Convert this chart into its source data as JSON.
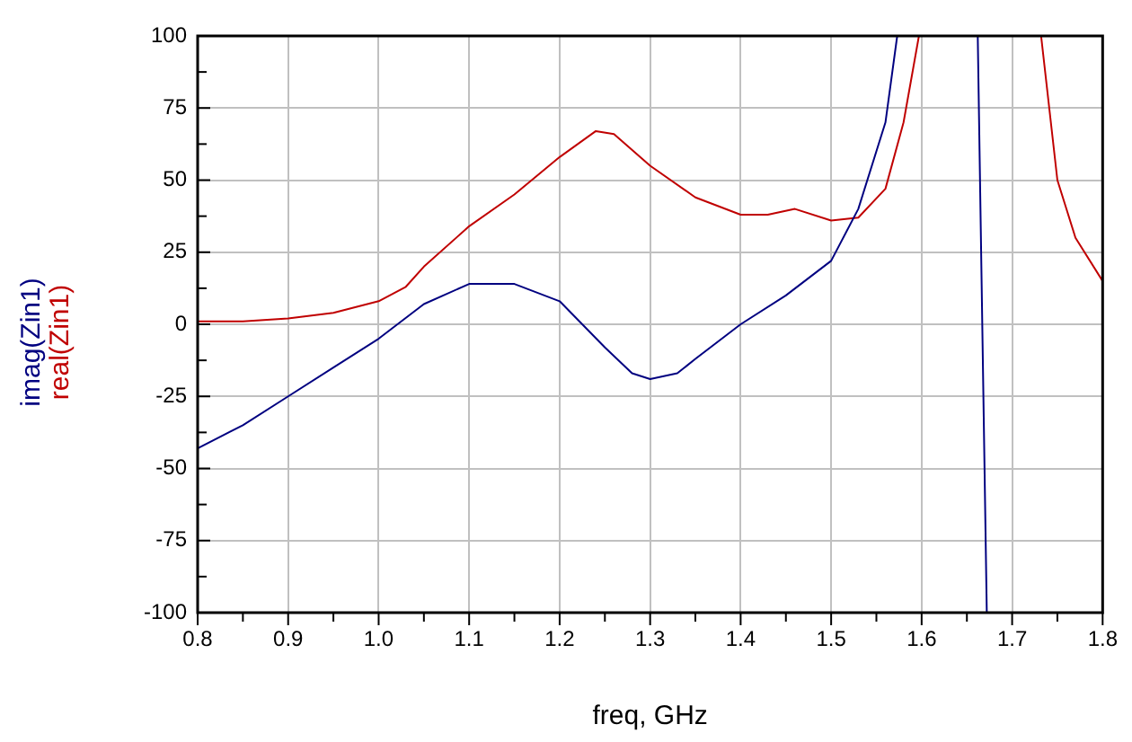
{
  "chart_data": {
    "type": "line",
    "xlabel": "freq, GHz",
    "legend": "left",
    "grid": true,
    "marker": "none",
    "line_style": "solid",
    "xlim": [
      0.8,
      1.8
    ],
    "ylim": [
      -100,
      100
    ],
    "xticks": [
      0.8,
      {
        "value": 0.85,
        "label": null
      },
      0.9,
      {
        "value": 0.95,
        "label": null
      },
      {
        "value": 1.0,
        "label": "1.0"
      },
      {
        "value": 1.05,
        "label": null
      },
      1.1,
      {
        "value": 1.15,
        "label": null
      },
      1.2,
      {
        "value": 1.25,
        "label": null
      },
      1.3,
      {
        "value": 1.35,
        "label": null
      },
      1.4,
      {
        "value": 1.45,
        "label": null
      },
      1.5,
      {
        "value": 1.55,
        "label": null
      },
      1.6,
      {
        "value": 1.65,
        "label": null
      },
      1.7,
      {
        "value": 1.75,
        "label": null
      },
      1.8
    ],
    "yticks": [
      -100,
      {
        "value": -87.5,
        "label": null
      },
      -75,
      {
        "value": -62.5,
        "label": null
      },
      -50,
      {
        "value": -37.5,
        "label": null
      },
      -25,
      {
        "value": -12.5,
        "label": null
      },
      0,
      {
        "value": 12.5,
        "label": null
      },
      25,
      {
        "value": 37.5,
        "label": null
      },
      50,
      {
        "value": 62.5,
        "label": null
      },
      75,
      {
        "value": 87.5,
        "label": null
      },
      100
    ],
    "series": [
      {
        "name": "imag(Zin1)",
        "color": "#000080",
        "x": [
          0.8,
          0.85,
          0.9,
          0.95,
          1.0,
          1.05,
          1.1,
          1.15,
          1.2,
          1.25,
          1.28,
          1.3,
          1.33,
          1.35,
          1.4,
          1.45,
          1.5,
          1.53,
          1.56,
          1.573,
          1.62,
          1.662,
          1.672
        ],
        "values": [
          -43,
          -35,
          -25,
          -15,
          -5,
          7,
          14,
          14,
          8,
          -8,
          -17,
          -19,
          -17,
          -12,
          0,
          10,
          22,
          40,
          70,
          100,
          null,
          100,
          -100
        ]
      },
      {
        "name": "real(Zin1)",
        "color": "#c00000",
        "x": [
          0.8,
          0.85,
          0.9,
          0.95,
          1.0,
          1.03,
          1.05,
          1.1,
          1.15,
          1.2,
          1.24,
          1.26,
          1.3,
          1.35,
          1.4,
          1.43,
          1.46,
          1.5,
          1.53,
          1.56,
          1.58,
          1.597,
          1.66,
          1.732,
          1.75,
          1.77,
          1.8
        ],
        "values": [
          1,
          1,
          2,
          4,
          8,
          13,
          20,
          34,
          45,
          58,
          67,
          66,
          55,
          44,
          38,
          38,
          40,
          36,
          37,
          47,
          70,
          100,
          null,
          100,
          50,
          30,
          15
        ]
      }
    ]
  }
}
